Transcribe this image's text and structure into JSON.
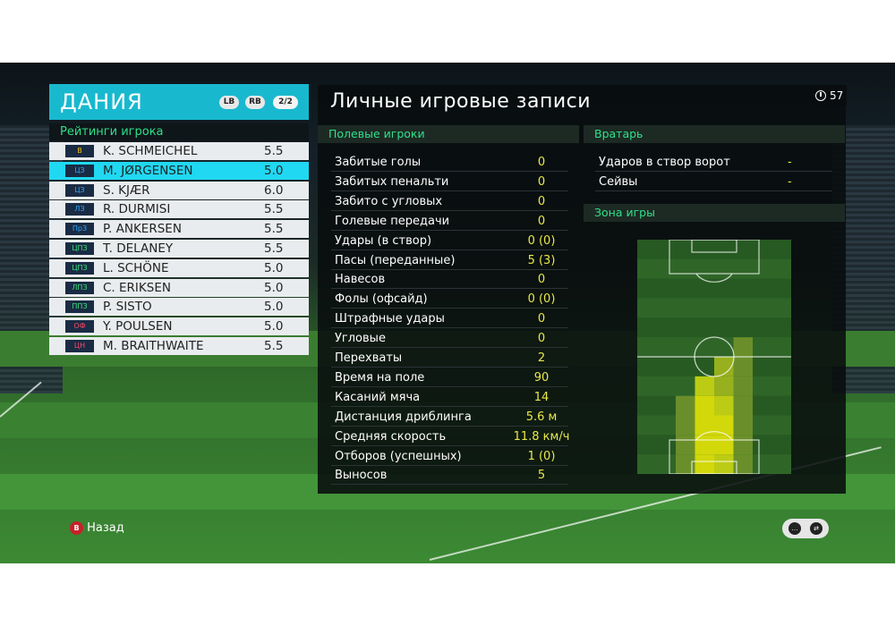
{
  "team": {
    "name": "ДАНИЯ",
    "lb_label": "LB",
    "rb_label": "RB",
    "page": "2/2"
  },
  "ratings_title": "Рейтинги игрока",
  "players": [
    {
      "pos": "В",
      "pos_color": "#f2c200",
      "name": "K. SCHMEICHEL",
      "rating": "5.5",
      "selected": false
    },
    {
      "pos": "ЦЗ",
      "pos_color": "#2ea8ff",
      "name": "M. JØRGENSEN",
      "rating": "5.0",
      "selected": true
    },
    {
      "pos": "ЦЗ",
      "pos_color": "#2ea8ff",
      "name": "S. KJÆR",
      "rating": "6.0",
      "selected": false
    },
    {
      "pos": "ЛЗ",
      "pos_color": "#2ea8ff",
      "name": "R. DURMISI",
      "rating": "5.5",
      "selected": false
    },
    {
      "pos": "ПрЗ",
      "pos_color": "#2ea8ff",
      "name": "P. ANKERSEN",
      "rating": "5.5",
      "selected": false
    },
    {
      "pos": "ЦПЗ",
      "pos_color": "#3de07a",
      "name": "T. DELANEY",
      "rating": "5.5",
      "selected": false
    },
    {
      "pos": "ЦПЗ",
      "pos_color": "#3de07a",
      "name": "L. SCHÖNE",
      "rating": "5.0",
      "selected": false
    },
    {
      "pos": "ЛПЗ",
      "pos_color": "#3de07a",
      "name": "C. ERIKSEN",
      "rating": "5.0",
      "selected": false
    },
    {
      "pos": "ППЗ",
      "pos_color": "#3de07a",
      "name": "P. SISTO",
      "rating": "5.0",
      "selected": false
    },
    {
      "pos": "ОФ",
      "pos_color": "#ff4a6a",
      "name": "Y. POULSEN",
      "rating": "5.0",
      "selected": false
    },
    {
      "pos": "ЦН",
      "pos_color": "#ff4a6a",
      "name": "M. BRAITHWAITE",
      "rating": "5.5",
      "selected": false
    }
  ],
  "main_title": "Личные игровые записи",
  "timer": "57",
  "field_players_title": "Полевые игроки",
  "stats": [
    {
      "label": "Забитые голы",
      "value": "0"
    },
    {
      "label": "Забитых пенальти",
      "value": "0"
    },
    {
      "label": "Забито с угловых",
      "value": "0"
    },
    {
      "label": "Голевые передачи",
      "value": "0"
    },
    {
      "label": "Удары (в створ)",
      "value": "0 (0)"
    },
    {
      "label": "Пасы (переданные)",
      "value": "5 (3)"
    },
    {
      "label": "Навесов",
      "value": "0"
    },
    {
      "label": "Фолы (офсайд)",
      "value": "0 (0)"
    },
    {
      "label": "Штрафные удары",
      "value": "0"
    },
    {
      "label": "Угловые",
      "value": "0"
    },
    {
      "label": "Перехваты",
      "value": "2"
    },
    {
      "label": "Время на поле",
      "value": "90"
    },
    {
      "label": "Касаний мяча",
      "value": "14"
    },
    {
      "label": "Дистанция дриблинга",
      "value": "5.6 м"
    },
    {
      "label": "Средняя скорость",
      "value": "11.8 км/ч"
    },
    {
      "label": "Отборов (успешных)",
      "value": "1 (0)"
    },
    {
      "label": "Выносов",
      "value": "5"
    }
  ],
  "goalkeeper_title": "Вратарь",
  "gk_stats": [
    {
      "label": "Ударов в створ ворот",
      "value": "-"
    },
    {
      "label": "Сейвы",
      "value": "-"
    }
  ],
  "zone_title": "Зона игры",
  "heatmap": {
    "cols": 8,
    "rows": 12,
    "cells": [
      [
        0,
        0,
        0,
        0,
        0,
        0,
        0,
        0
      ],
      [
        0,
        0,
        0,
        0,
        0,
        0,
        0,
        0
      ],
      [
        0,
        0,
        0,
        0,
        0,
        0,
        0,
        0
      ],
      [
        0,
        0,
        0,
        0,
        0,
        0,
        0,
        0
      ],
      [
        0,
        0,
        0,
        0,
        0,
        0,
        0,
        0
      ],
      [
        0,
        0,
        0,
        0,
        0,
        1,
        0,
        0
      ],
      [
        0,
        0,
        0,
        0,
        2,
        1,
        0,
        0
      ],
      [
        0,
        0,
        0,
        3,
        2,
        1,
        0,
        0
      ],
      [
        0,
        0,
        1,
        4,
        3,
        1,
        0,
        0
      ],
      [
        0,
        0,
        1,
        4,
        4,
        1,
        0,
        0
      ],
      [
        0,
        0,
        1,
        4,
        4,
        1,
        0,
        0
      ],
      [
        0,
        0,
        1,
        4,
        3,
        1,
        0,
        0
      ]
    ],
    "colors": [
      "rgba(0,0,0,0)",
      "#6a8f2a",
      "#96b01e",
      "#bccc14",
      "#d2d80a"
    ]
  },
  "footer": {
    "back_button": "B",
    "back_label": "Назад"
  }
}
